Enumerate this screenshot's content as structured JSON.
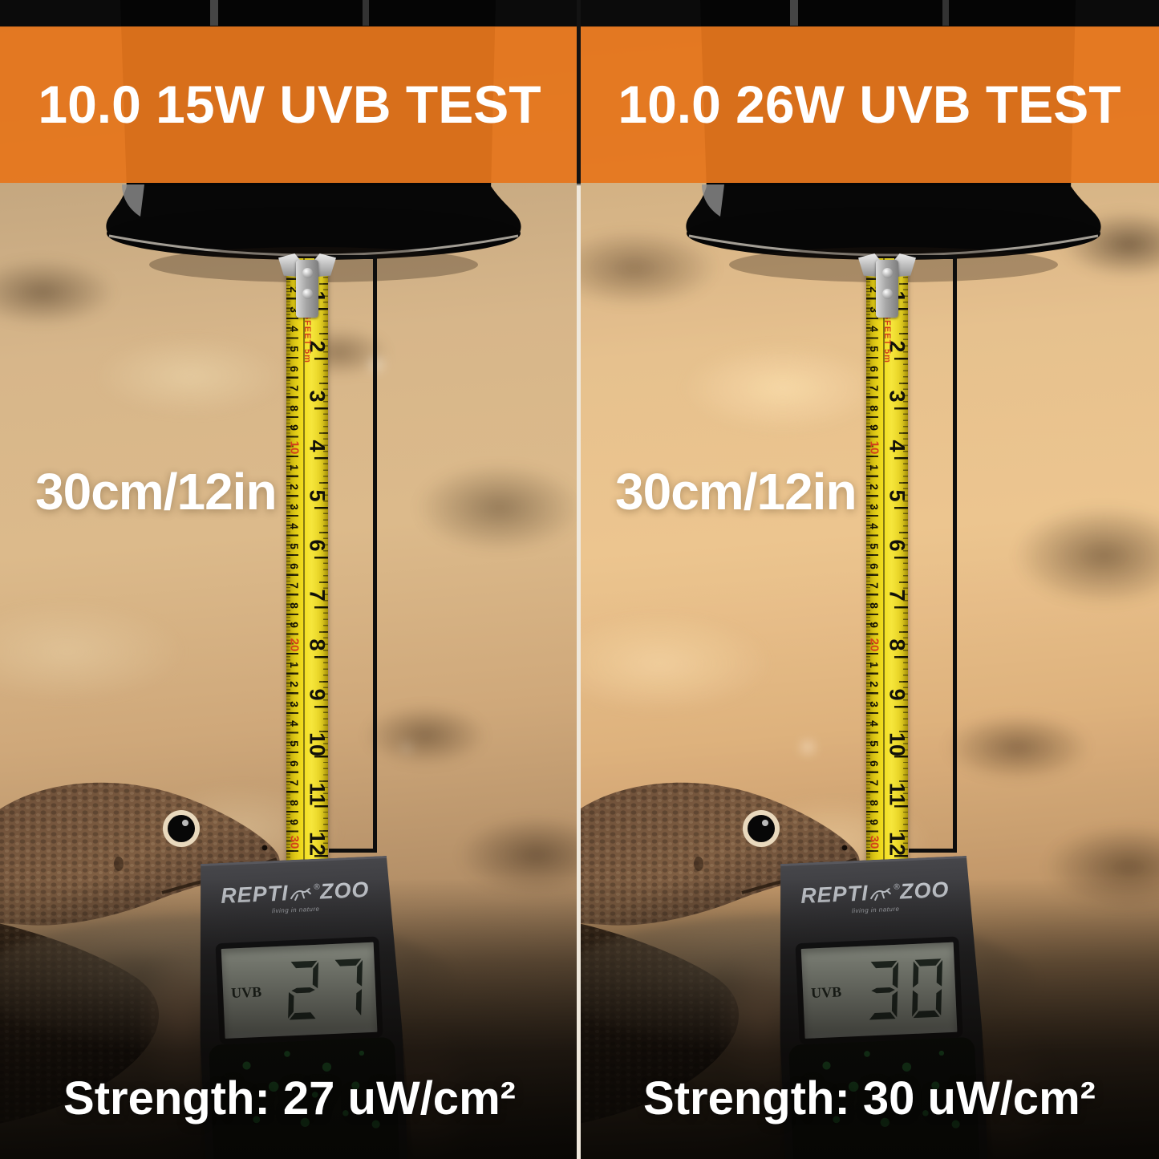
{
  "panels": [
    {
      "title": "10.0 15W UVB TEST",
      "distance_label": "30cm/12in",
      "lcd_mode": "UVB",
      "lcd_value": "27",
      "strength_label": "Strength: 27 uW/cm²"
    },
    {
      "title": "10.0 26W UVB TEST",
      "distance_label": "30cm/12in",
      "lcd_mode": "UVB",
      "lcd_value": "30",
      "strength_label": "Strength: 30 uW/cm²"
    }
  ],
  "meter_brand": {
    "left": "REPTI",
    "right": "ZOO",
    "reg": "®",
    "tagline": "living in nature"
  },
  "tape": {
    "feet_text": "16FEET",
    "meters_text": "5m",
    "cm_unit_labels": [
      "1",
      "2",
      "3",
      "4",
      "5",
      "6",
      "7",
      "8",
      "9"
    ],
    "cm_decade_labels": [
      "10",
      "20",
      "30"
    ],
    "inch_labels": [
      "1",
      "2",
      "3",
      "4",
      "5",
      "6",
      "7",
      "8",
      "9",
      "10",
      "11",
      "12"
    ]
  },
  "colors": {
    "banner": "#e5761d",
    "tape-yellow": "#f2dd1e",
    "tape-red": "#d2401a",
    "lcd-bg": "#c7cec0",
    "seg": "#2a372f",
    "pattern-green": "#2fae4a",
    "divider": "#efe8dc"
  }
}
